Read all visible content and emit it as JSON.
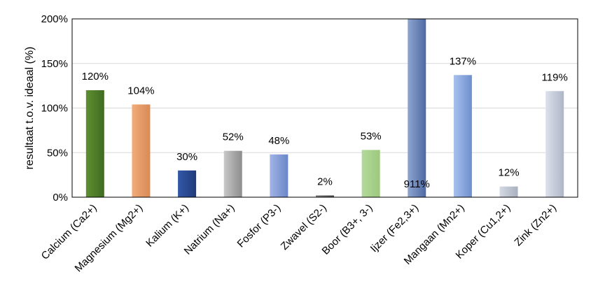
{
  "chart_data": {
    "type": "bar",
    "title": "",
    "xlabel": "",
    "ylabel": "resultaat t.o.v. ideaal (%)",
    "ylim": [
      0,
      200
    ],
    "yticks": [
      "0%",
      "50%",
      "100%",
      "150%",
      "200%"
    ],
    "grid": "horizontal",
    "legend": "none",
    "categories": [
      "Calcium (Ca2+)",
      "Magnesium (Mg2+)",
      "Kalium (K+)",
      "Natrium (Na+)",
      "Fosfor (P3-)",
      "Zwavel (S2-)",
      "Boor (B3+, 3-)",
      "Ijzer (Fe2,3+)",
      "Mangaan (Mn2+)",
      "Koper (Cu1,2+)",
      "Zink (Zn2+)"
    ],
    "values": [
      120,
      104,
      30,
      52,
      48,
      2,
      53,
      911,
      137,
      12,
      119
    ],
    "data_labels": [
      "120%",
      "104%",
      "30%",
      "52%",
      "48%",
      "2%",
      "53%",
      "911%",
      "137%",
      "12%",
      "119%"
    ],
    "colors": [
      [
        "#3f6b1f",
        "#5f8f33"
      ],
      [
        "#d98a55",
        "#f2ab78"
      ],
      [
        "#1f3a7a",
        "#3358a8"
      ],
      [
        "#8c8c8c",
        "#c8c8c8"
      ],
      [
        "#6b86c8",
        "#a0b5e6"
      ],
      [
        "#4a4a4a",
        "#7a7a7a"
      ],
      [
        "#9cc97e",
        "#b4d99a"
      ],
      [
        "#4d6aa3",
        "#8fa5cf"
      ],
      [
        "#6d8fcf",
        "#a9c0ec"
      ],
      [
        "#a9b0be",
        "#d4d9e3"
      ],
      [
        "#aeb6c6",
        "#dbe1ec"
      ]
    ]
  }
}
